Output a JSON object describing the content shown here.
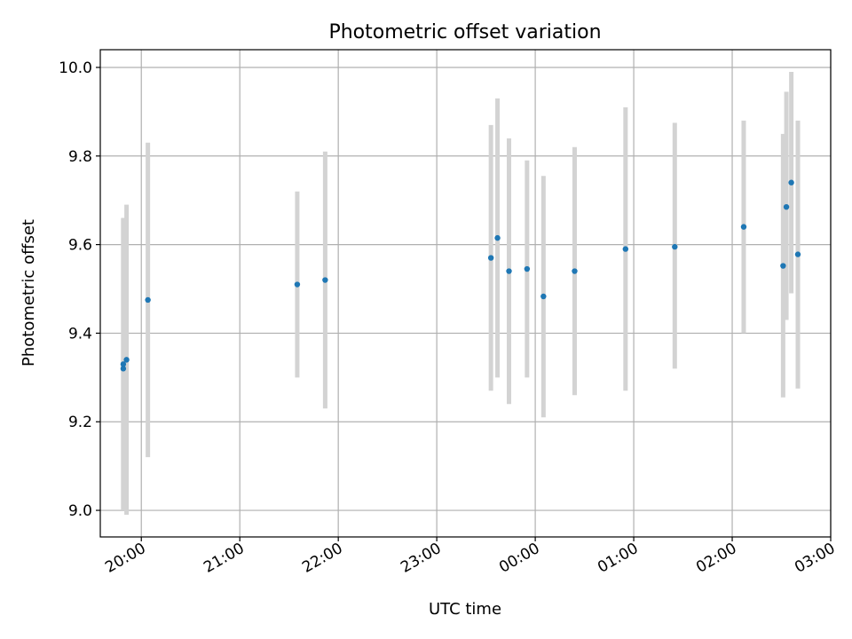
{
  "chart_data": {
    "type": "scatter",
    "title": "Photometric offset variation",
    "xlabel": "UTC time",
    "ylabel": "Photometric offset",
    "x_axis_kind": "time",
    "xlim": [
      "19:35",
      "03:00"
    ],
    "ylim": [
      8.94,
      10.04
    ],
    "x_ticks": [
      "20:00",
      "21:00",
      "22:00",
      "23:00",
      "00:00",
      "01:00",
      "02:00",
      "03:00"
    ],
    "y_ticks": [
      "9.0",
      "9.2",
      "9.4",
      "9.6",
      "9.8",
      "10.0"
    ],
    "grid": true,
    "legend": "none",
    "point_color": "#1f77b4",
    "errorbar_color": "#d3d3d3",
    "points": [
      {
        "t": "19:49",
        "y": 9.32,
        "ylow": 9.0,
        "yhigh": 9.66
      },
      {
        "t": "19:49",
        "y": 9.33,
        "ylow": 9.0,
        "yhigh": 9.66
      },
      {
        "t": "19:51",
        "y": 9.34,
        "ylow": 8.99,
        "yhigh": 9.69
      },
      {
        "t": "20:04",
        "y": 9.475,
        "ylow": 9.12,
        "yhigh": 9.83
      },
      {
        "t": "21:35",
        "y": 9.51,
        "ylow": 9.3,
        "yhigh": 9.72
      },
      {
        "t": "21:52",
        "y": 9.52,
        "ylow": 9.23,
        "yhigh": 9.81
      },
      {
        "t": "23:33",
        "y": 9.57,
        "ylow": 9.27,
        "yhigh": 9.87
      },
      {
        "t": "23:37",
        "y": 9.615,
        "ylow": 9.3,
        "yhigh": 9.93
      },
      {
        "t": "23:44",
        "y": 9.54,
        "ylow": 9.24,
        "yhigh": 9.84
      },
      {
        "t": "23:55",
        "y": 9.545,
        "ylow": 9.3,
        "yhigh": 9.79
      },
      {
        "t": "00:05",
        "y": 9.483,
        "ylow": 9.21,
        "yhigh": 9.755
      },
      {
        "t": "00:24",
        "y": 9.54,
        "ylow": 9.26,
        "yhigh": 9.82
      },
      {
        "t": "00:55",
        "y": 9.59,
        "ylow": 9.27,
        "yhigh": 9.91
      },
      {
        "t": "01:25",
        "y": 9.595,
        "ylow": 9.32,
        "yhigh": 9.875
      },
      {
        "t": "02:07",
        "y": 9.64,
        "ylow": 9.4,
        "yhigh": 9.88
      },
      {
        "t": "02:31",
        "y": 9.552,
        "ylow": 9.255,
        "yhigh": 9.85
      },
      {
        "t": "02:33",
        "y": 9.685,
        "ylow": 9.43,
        "yhigh": 9.945
      },
      {
        "t": "02:36",
        "y": 9.74,
        "ylow": 9.49,
        "yhigh": 9.99
      },
      {
        "t": "02:40",
        "y": 9.578,
        "ylow": 9.275,
        "yhigh": 9.88
      }
    ]
  }
}
